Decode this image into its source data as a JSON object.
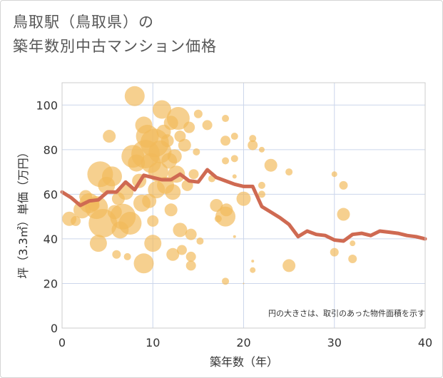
{
  "title_line1": "鳥取駅（鳥取県）の",
  "title_line2": "築年数別中古マンション価格",
  "chart_data": {
    "type": "scatter",
    "xlabel": "築年数（年）",
    "ylabel": "坪（3.3㎡）単価（万円）",
    "xlim": [
      0,
      40
    ],
    "ylim": [
      0,
      110
    ],
    "xticks": [
      0,
      10,
      20,
      30,
      40
    ],
    "yticks": [
      0,
      20,
      40,
      60,
      80,
      100
    ],
    "grid": true,
    "note": "円の大きさは、取引のあった物件面積を示す",
    "colors": {
      "bubble": "#f2b95a",
      "line": "#cf6a52",
      "grid": "#ccd6eb",
      "plot_border": "#cccccc"
    },
    "bubbles": [
      {
        "x": 0.8,
        "y": 49,
        "r": 10
      },
      {
        "x": 1.5,
        "y": 48,
        "r": 7
      },
      {
        "x": 2.2,
        "y": 53,
        "r": 12
      },
      {
        "x": 2.6,
        "y": 59,
        "r": 9
      },
      {
        "x": 3.0,
        "y": 56,
        "r": 14
      },
      {
        "x": 3.5,
        "y": 55,
        "r": 8
      },
      {
        "x": 3.8,
        "y": 54,
        "r": 16
      },
      {
        "x": 4.0,
        "y": 38,
        "r": 12
      },
      {
        "x": 4.2,
        "y": 69,
        "r": 18
      },
      {
        "x": 4.5,
        "y": 47,
        "r": 20
      },
      {
        "x": 4.9,
        "y": 64,
        "r": 12
      },
      {
        "x": 5.2,
        "y": 86,
        "r": 9
      },
      {
        "x": 5.5,
        "y": 68,
        "r": 14
      },
      {
        "x": 5.8,
        "y": 52,
        "r": 10
      },
      {
        "x": 6.0,
        "y": 33,
        "r": 6
      },
      {
        "x": 6.2,
        "y": 58,
        "r": 9
      },
      {
        "x": 6.4,
        "y": 44,
        "r": 12
      },
      {
        "x": 6.7,
        "y": 50,
        "r": 18
      },
      {
        "x": 7.0,
        "y": 61,
        "r": 11
      },
      {
        "x": 7.2,
        "y": 32,
        "r": 5
      },
      {
        "x": 7.5,
        "y": 47,
        "r": 16
      },
      {
        "x": 7.8,
        "y": 77,
        "r": 16
      },
      {
        "x": 8.0,
        "y": 104,
        "r": 14
      },
      {
        "x": 8.2,
        "y": 74,
        "r": 12
      },
      {
        "x": 8.5,
        "y": 66,
        "r": 10
      },
      {
        "x": 8.8,
        "y": 56,
        "r": 12
      },
      {
        "x": 9.0,
        "y": 29,
        "r": 14
      },
      {
        "x": 9.0,
        "y": 91,
        "r": 12
      },
      {
        "x": 9.2,
        "y": 78,
        "r": 20
      },
      {
        "x": 9.4,
        "y": 86,
        "r": 16
      },
      {
        "x": 9.6,
        "y": 57,
        "r": 10
      },
      {
        "x": 9.8,
        "y": 74,
        "r": 14
      },
      {
        "x": 10.0,
        "y": 38,
        "r": 12
      },
      {
        "x": 10.0,
        "y": 48,
        "r": 8
      },
      {
        "x": 10.2,
        "y": 83,
        "r": 20
      },
      {
        "x": 10.4,
        "y": 62,
        "r": 12
      },
      {
        "x": 10.6,
        "y": 70,
        "r": 14
      },
      {
        "x": 10.8,
        "y": 79,
        "r": 16
      },
      {
        "x": 11.0,
        "y": 98,
        "r": 13
      },
      {
        "x": 11.2,
        "y": 88,
        "r": 10
      },
      {
        "x": 11.4,
        "y": 64,
        "r": 12
      },
      {
        "x": 11.6,
        "y": 84,
        "r": 9
      },
      {
        "x": 11.8,
        "y": 75,
        "r": 11
      },
      {
        "x": 12.0,
        "y": 92,
        "r": 10
      },
      {
        "x": 12.0,
        "y": 53,
        "r": 9
      },
      {
        "x": 12.2,
        "y": 61,
        "r": 11
      },
      {
        "x": 12.2,
        "y": 33,
        "r": 9
      },
      {
        "x": 12.4,
        "y": 77,
        "r": 10
      },
      {
        "x": 12.6,
        "y": 69,
        "r": 12
      },
      {
        "x": 12.8,
        "y": 94,
        "r": 16
      },
      {
        "x": 13.0,
        "y": 86,
        "r": 8
      },
      {
        "x": 13.0,
        "y": 44,
        "r": 10
      },
      {
        "x": 13.2,
        "y": 35,
        "r": 7
      },
      {
        "x": 13.5,
        "y": 82,
        "r": 9
      },
      {
        "x": 13.8,
        "y": 64,
        "r": 8
      },
      {
        "x": 14.0,
        "y": 90,
        "r": 8
      },
      {
        "x": 14.2,
        "y": 42,
        "r": 8
      },
      {
        "x": 14.2,
        "y": 28,
        "r": 7
      },
      {
        "x": 14.2,
        "y": 32,
        "r": 7
      },
      {
        "x": 14.5,
        "y": 69,
        "r": 7
      },
      {
        "x": 14.8,
        "y": 79,
        "r": 5
      },
      {
        "x": 15.0,
        "y": 96,
        "r": 6
      },
      {
        "x": 15.2,
        "y": 39,
        "r": 5
      },
      {
        "x": 16.0,
        "y": 91,
        "r": 7
      },
      {
        "x": 16.5,
        "y": 67,
        "r": 5
      },
      {
        "x": 17.0,
        "y": 55,
        "r": 9
      },
      {
        "x": 17.2,
        "y": 49,
        "r": 5
      },
      {
        "x": 18.0,
        "y": 94,
        "r": 5
      },
      {
        "x": 18.0,
        "y": 84,
        "r": 7
      },
      {
        "x": 18.0,
        "y": 75,
        "r": 5
      },
      {
        "x": 18.0,
        "y": 50,
        "r": 14
      },
      {
        "x": 18.1,
        "y": 53,
        "r": 9
      },
      {
        "x": 18.0,
        "y": 21,
        "r": 5
      },
      {
        "x": 19.0,
        "y": 86,
        "r": 5
      },
      {
        "x": 19.0,
        "y": 76,
        "r": 5
      },
      {
        "x": 19.0,
        "y": 68,
        "r": 3
      },
      {
        "x": 19.0,
        "y": 41,
        "r": 2
      },
      {
        "x": 20.0,
        "y": 58,
        "r": 10
      },
      {
        "x": 20.0,
        "y": 20,
        "r": 1
      },
      {
        "x": 21.0,
        "y": 85,
        "r": 5
      },
      {
        "x": 21.0,
        "y": 82,
        "r": 7
      },
      {
        "x": 21.0,
        "y": 30,
        "r": 2
      },
      {
        "x": 21.0,
        "y": 26,
        "r": 4
      },
      {
        "x": 22.0,
        "y": 80,
        "r": 4
      },
      {
        "x": 22.0,
        "y": 64,
        "r": 5
      },
      {
        "x": 22.0,
        "y": 60,
        "r": 5
      },
      {
        "x": 23.0,
        "y": 73,
        "r": 9
      },
      {
        "x": 25.0,
        "y": 70,
        "r": 5
      },
      {
        "x": 25.0,
        "y": 28,
        "r": 9
      },
      {
        "x": 30.0,
        "y": 69,
        "r": 4
      },
      {
        "x": 30.0,
        "y": 34,
        "r": 6
      },
      {
        "x": 31.0,
        "y": 64,
        "r": 6
      },
      {
        "x": 31.0,
        "y": 51,
        "r": 9
      },
      {
        "x": 32.0,
        "y": 38,
        "r": 4
      },
      {
        "x": 32.0,
        "y": 31,
        "r": 6
      }
    ],
    "avg_line": {
      "x": [
        0,
        1,
        2,
        3,
        4,
        5,
        6,
        7,
        8,
        9,
        10,
        11,
        12,
        13,
        14,
        15,
        16,
        17,
        18,
        19,
        20,
        21,
        22,
        23,
        24,
        25,
        26,
        27,
        28,
        29,
        30,
        31,
        32,
        33,
        34,
        35,
        36,
        37,
        38,
        39,
        40
      ],
      "y": [
        61,
        58.5,
        55,
        57,
        57.5,
        61,
        61,
        65.5,
        62,
        68.5,
        67.5,
        66.5,
        66.5,
        69,
        66,
        65.5,
        71,
        67.5,
        66,
        64.5,
        63.5,
        63.5,
        54.5,
        52,
        49.5,
        46.5,
        41,
        43.5,
        42,
        41.5,
        39.5,
        39,
        42,
        42.5,
        41.5,
        43.5,
        43,
        42.5,
        41.5,
        41,
        40
      ]
    }
  }
}
